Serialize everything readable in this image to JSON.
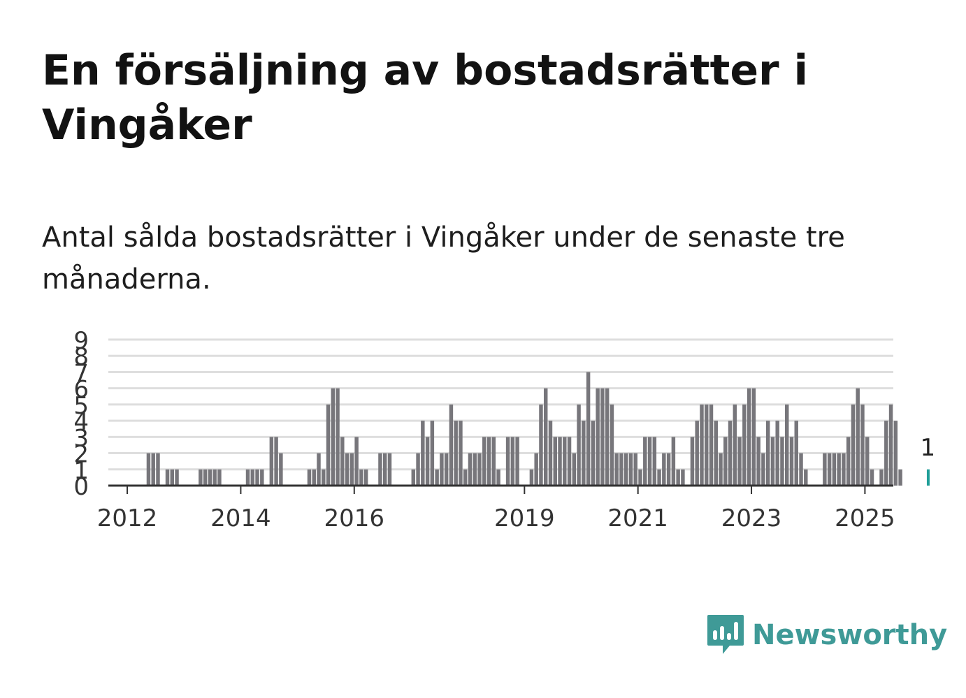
{
  "title": "En försäljning av bostadsrätter i Vingåker",
  "subtitle": "Antal sålda bostadsrätter i Vingåker under de senaste tre månaderna.",
  "brand": {
    "name": "Newsworthy",
    "color": "#3f9a97",
    "icon": "newsworthy-logo-icon"
  },
  "colors": {
    "bar": "#77767b",
    "highlight": "#1f9e98",
    "grid": "#dedede",
    "axis": "#333333"
  },
  "chart_data": {
    "type": "bar",
    "x_start": "2011-09",
    "x_end": "2025-06",
    "ylim": [
      0,
      9
    ],
    "yticks": [
      0,
      1,
      2,
      3,
      4,
      5,
      6,
      7,
      8,
      9
    ],
    "xticks": [
      "2012",
      "2014",
      "2016",
      "2019",
      "2021",
      "2023",
      "2025"
    ],
    "grid": true,
    "highlight_label": "1",
    "values": [
      0,
      0,
      0,
      0,
      0,
      0,
      0,
      0,
      2,
      2,
      2,
      0,
      1,
      1,
      1,
      0,
      0,
      0,
      0,
      1,
      1,
      1,
      1,
      1,
      0,
      0,
      0,
      0,
      0,
      1,
      1,
      1,
      1,
      0,
      3,
      3,
      2,
      0,
      0,
      0,
      0,
      0,
      1,
      1,
      2,
      1,
      5,
      6,
      6,
      3,
      2,
      2,
      3,
      1,
      1,
      0,
      0,
      2,
      2,
      2,
      0,
      0,
      0,
      0,
      1,
      2,
      4,
      3,
      4,
      1,
      2,
      2,
      5,
      4,
      4,
      1,
      2,
      2,
      2,
      3,
      3,
      3,
      1,
      0,
      3,
      3,
      3,
      0,
      0,
      1,
      2,
      5,
      6,
      4,
      3,
      3,
      3,
      3,
      2,
      5,
      4,
      7,
      4,
      6,
      6,
      6,
      5,
      2,
      2,
      2,
      2,
      2,
      1,
      3,
      3,
      3,
      1,
      2,
      2,
      3,
      1,
      1,
      0,
      3,
      4,
      5,
      5,
      5,
      4,
      2,
      3,
      4,
      5,
      3,
      5,
      6,
      6,
      3,
      2,
      4,
      3,
      4,
      3,
      5,
      3,
      4,
      2,
      1,
      0,
      0,
      0,
      2,
      2,
      2,
      2,
      2,
      3,
      5,
      6,
      5,
      3,
      1,
      0,
      1,
      4,
      5,
      4,
      1,
      0,
      0,
      0,
      0,
      0,
      1
    ]
  }
}
